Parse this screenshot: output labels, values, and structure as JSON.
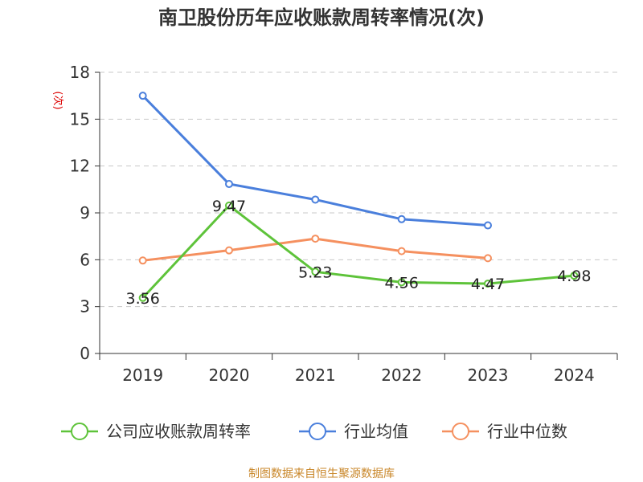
{
  "chart_data": {
    "type": "line",
    "title": "南卫股份历年应收账款周转率情况(次)",
    "ylabel": "(次)",
    "xlabel": "",
    "categories": [
      "2019",
      "2020",
      "2021",
      "2022",
      "2023",
      "2024"
    ],
    "ylim": [
      0,
      18
    ],
    "yticks": [
      0,
      3,
      6,
      9,
      12,
      15,
      18
    ],
    "grid": true,
    "legend_position": "bottom",
    "series": [
      {
        "name": "公司应收账款周转率",
        "color": "#5ec33a",
        "values": [
          3.56,
          9.47,
          5.23,
          4.56,
          4.47,
          4.98
        ],
        "labels": [
          "3.56",
          "9.47",
          "5.23",
          "4.56",
          "4.47",
          "4.98"
        ]
      },
      {
        "name": "行业均值",
        "color": "#4a7fdc",
        "values": [
          16.5,
          10.85,
          9.85,
          8.6,
          8.2,
          null
        ]
      },
      {
        "name": "行业中位数",
        "color": "#f5905f",
        "values": [
          5.95,
          6.6,
          7.35,
          6.55,
          6.1,
          null
        ]
      }
    ],
    "source": "制图数据来自恒生聚源数据库"
  }
}
